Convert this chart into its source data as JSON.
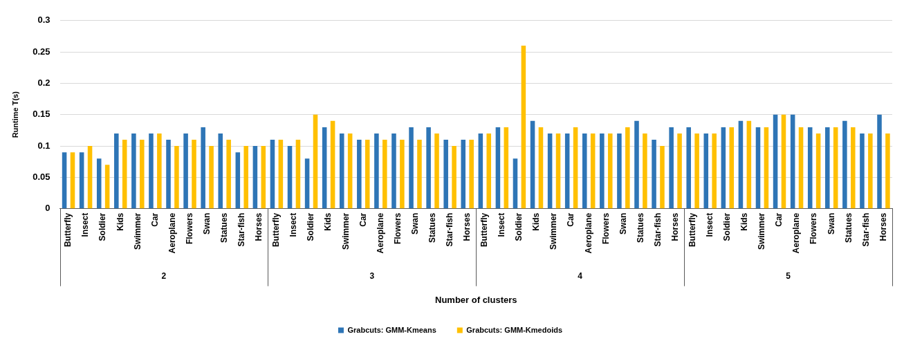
{
  "chart_data": {
    "type": "bar",
    "xlabel": "Number of clusters",
    "ylabel": "Runtime T(s)",
    "categories": [
      "Butterfly",
      "Insect",
      "Soldier",
      "Kids",
      "Swimmer",
      "Car",
      "Aeroplane",
      "Flowers",
      "Swan",
      "Statues",
      "Star-fish",
      "Horses",
      "Butterfly",
      "Insect",
      "Soldier",
      "Kids",
      "Swimmer",
      "Car",
      "Aeroplane",
      "Flowers",
      "Swan",
      "Statues",
      "Star-fish",
      "Horses",
      "Butterfly",
      "Insect",
      "Soldier",
      "Kids",
      "Swimmer",
      "Car",
      "Aeroplane",
      "Flowers",
      "Swan",
      "Statues",
      "Star-fish",
      "Horses",
      "Butterfly",
      "Insect",
      "Soldier",
      "Kids",
      "Swimmer",
      "Car",
      "Aeroplane",
      "Flowers",
      "Swan",
      "Statues",
      "Star-fish",
      "Horses"
    ],
    "annotations": [
      "2",
      "3",
      "4",
      "5"
    ],
    "series": [
      {
        "name": "Grabcuts: GMM-Kmeans",
        "color": "#2e75b6",
        "values": [
          0.09,
          0.09,
          0.08,
          0.12,
          0.12,
          0.12,
          0.11,
          0.12,
          0.13,
          0.12,
          0.09,
          0.1,
          0.11,
          0.1,
          0.08,
          0.13,
          0.12,
          0.11,
          0.12,
          0.12,
          0.13,
          0.13,
          0.11,
          0.11,
          0.12,
          0.13,
          0.08,
          0.14,
          0.12,
          0.12,
          0.12,
          0.12,
          0.12,
          0.14,
          0.11,
          0.13,
          0.13,
          0.12,
          0.13,
          0.14,
          0.13,
          0.15,
          0.15,
          0.13,
          0.13,
          0.14,
          0.12,
          0.15
        ]
      },
      {
        "name": "Grabcuts: GMM-Kmedoids",
        "color": "#ffc000",
        "values": [
          0.09,
          0.1,
          0.07,
          0.11,
          0.11,
          0.12,
          0.1,
          0.11,
          0.1,
          0.11,
          0.1,
          0.1,
          0.11,
          0.11,
          0.15,
          0.14,
          0.12,
          0.11,
          0.11,
          0.11,
          0.11,
          0.12,
          0.1,
          0.11,
          0.12,
          0.13,
          0.26,
          0.13,
          0.12,
          0.13,
          0.12,
          0.12,
          0.13,
          0.12,
          0.1,
          0.12,
          0.12,
          0.12,
          0.13,
          0.14,
          0.13,
          0.15,
          0.13,
          0.12,
          0.13,
          0.13,
          0.12,
          0.12
        ]
      }
    ],
    "ylim": [
      0,
      0.3
    ],
    "yticks": [
      0,
      0.05,
      0.1,
      0.15,
      0.2,
      0.25,
      0.3
    ],
    "grid": "y",
    "legend": "bottom"
  }
}
